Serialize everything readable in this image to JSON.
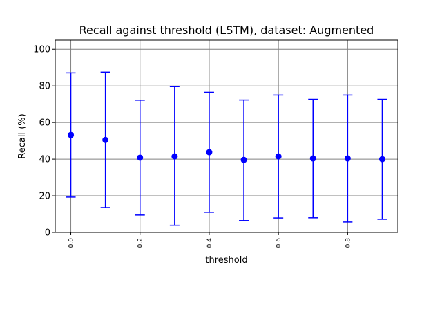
{
  "chart_data": {
    "type": "errorbar",
    "title": "Recall against threshold (LSTM), dataset: Augmented",
    "xlabel": "threshold",
    "ylabel": "Recall (%)",
    "xlim": [
      -0.045,
      0.945
    ],
    "ylim": [
      0,
      105
    ],
    "grid": true,
    "x_ticks": [
      "0.0",
      "0.2",
      "0.4",
      "0.6",
      "0.8"
    ],
    "y_ticks": [
      "0",
      "20",
      "40",
      "60",
      "80",
      "100"
    ],
    "series": [
      {
        "color": "#0000ff",
        "x": [
          0.0,
          0.1,
          0.2,
          0.3,
          0.4,
          0.5,
          0.6,
          0.7,
          0.8,
          0.9
        ],
        "y": [
          53.2,
          50.5,
          40.8,
          41.5,
          43.8,
          39.6,
          41.5,
          40.4,
          40.4,
          40.0
        ],
        "lower": [
          19.3,
          13.6,
          9.5,
          3.9,
          11.0,
          6.5,
          7.9,
          8.0,
          5.7,
          7.2
        ],
        "upper": [
          87.1,
          87.5,
          72.2,
          79.6,
          76.5,
          72.3,
          75.0,
          72.7,
          75.0,
          72.7
        ]
      }
    ]
  }
}
